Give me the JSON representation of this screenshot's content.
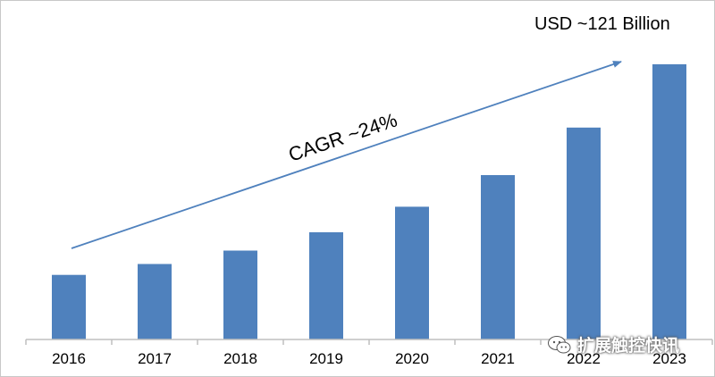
{
  "chart_data": {
    "type": "bar",
    "categories": [
      "2016",
      "2017",
      "2018",
      "2019",
      "2020",
      "2021",
      "2022",
      "2023"
    ],
    "values": [
      26.5,
      31,
      36.5,
      44,
      54.5,
      67.5,
      87,
      113
    ],
    "ylim": [
      0,
      117
    ],
    "bar_color": "#4f81bd",
    "grid": false,
    "legend": "none",
    "annotations": {
      "top_value": "USD ~121 Billion",
      "cagr": "CAGR ~24%"
    }
  },
  "watermark": {
    "text": "扩展触控快讯",
    "icon": "wechat-icon"
  }
}
